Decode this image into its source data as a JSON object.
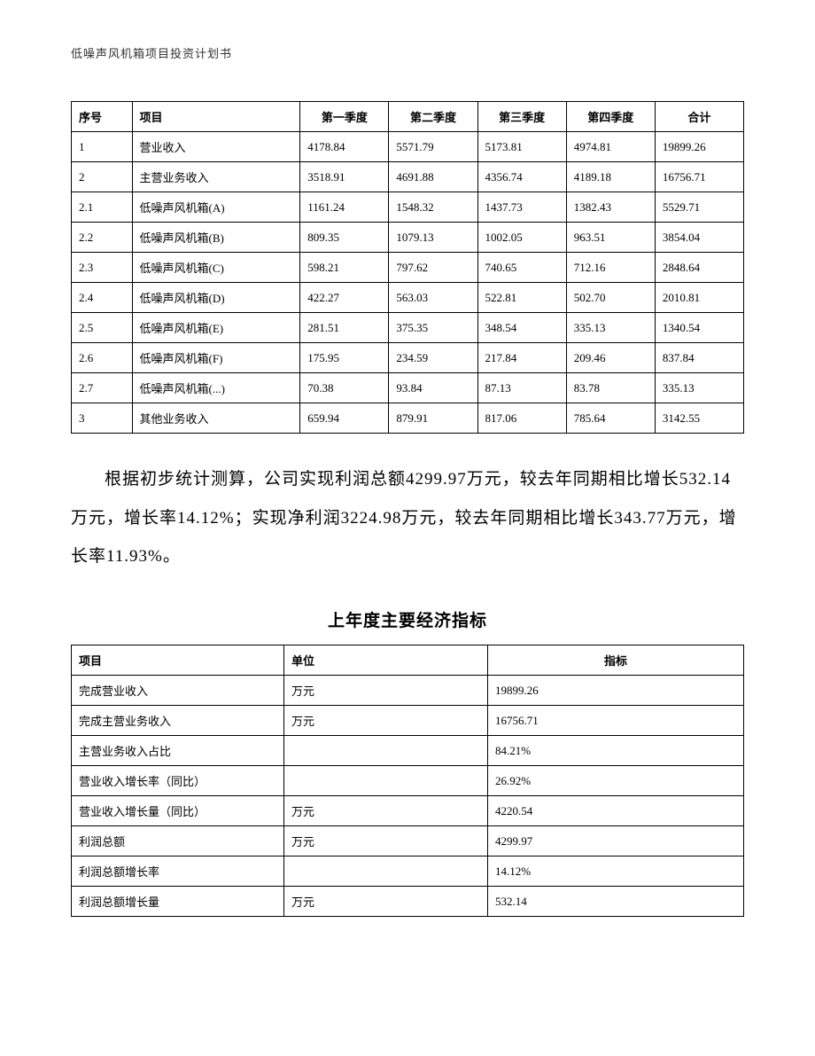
{
  "header": {
    "title": "低噪声风机箱项目投资计划书"
  },
  "table1": {
    "type": "table",
    "border_color": "#000000",
    "background_color": "#ffffff",
    "font_size": 13,
    "columns": [
      "序号",
      "项目",
      "第一季度",
      "第二季度",
      "第三季度",
      "第四季度",
      "合计"
    ],
    "rows": [
      [
        "1",
        "营业收入",
        "4178.84",
        "5571.79",
        "5173.81",
        "4974.81",
        "19899.26"
      ],
      [
        "2",
        "主营业务收入",
        "3518.91",
        "4691.88",
        "4356.74",
        "4189.18",
        "16756.71"
      ],
      [
        "2.1",
        "低噪声风机箱(A)",
        "1161.24",
        "1548.32",
        "1437.73",
        "1382.43",
        "5529.71"
      ],
      [
        "2.2",
        "低噪声风机箱(B)",
        "809.35",
        "1079.13",
        "1002.05",
        "963.51",
        "3854.04"
      ],
      [
        "2.3",
        "低噪声风机箱(C)",
        "598.21",
        "797.62",
        "740.65",
        "712.16",
        "2848.64"
      ],
      [
        "2.4",
        "低噪声风机箱(D)",
        "422.27",
        "563.03",
        "522.81",
        "502.70",
        "2010.81"
      ],
      [
        "2.5",
        "低噪声风机箱(E)",
        "281.51",
        "375.35",
        "348.54",
        "335.13",
        "1340.54"
      ],
      [
        "2.6",
        "低噪声风机箱(F)",
        "175.95",
        "234.59",
        "217.84",
        "209.46",
        "837.84"
      ],
      [
        "2.7",
        "低噪声风机箱(...)",
        "70.38",
        "93.84",
        "87.13",
        "83.78",
        "335.13"
      ],
      [
        "3",
        "其他业务收入",
        "659.94",
        "879.91",
        "817.06",
        "785.64",
        "3142.55"
      ]
    ]
  },
  "paragraph": {
    "text": "根据初步统计测算，公司实现利润总额4299.97万元，较去年同期相比增长532.14万元，增长率14.12%；实现净利润3224.98万元，较去年同期相比增长343.77万元，增长率11.93%。"
  },
  "section_title": "上年度主要经济指标",
  "table2": {
    "type": "table",
    "border_color": "#000000",
    "background_color": "#ffffff",
    "font_size": 13,
    "columns": [
      "项目",
      "单位",
      "指标"
    ],
    "rows": [
      [
        "完成营业收入",
        "万元",
        "19899.26"
      ],
      [
        "完成主营业务收入",
        "万元",
        "16756.71"
      ],
      [
        "主营业务收入占比",
        "",
        "84.21%"
      ],
      [
        "营业收入增长率（同比）",
        "",
        "26.92%"
      ],
      [
        "营业收入增长量（同比）",
        "万元",
        "4220.54"
      ],
      [
        "利润总额",
        "万元",
        "4299.97"
      ],
      [
        "利润总额增长率",
        "",
        "14.12%"
      ],
      [
        "利润总额增长量",
        "万元",
        "532.14"
      ]
    ]
  }
}
